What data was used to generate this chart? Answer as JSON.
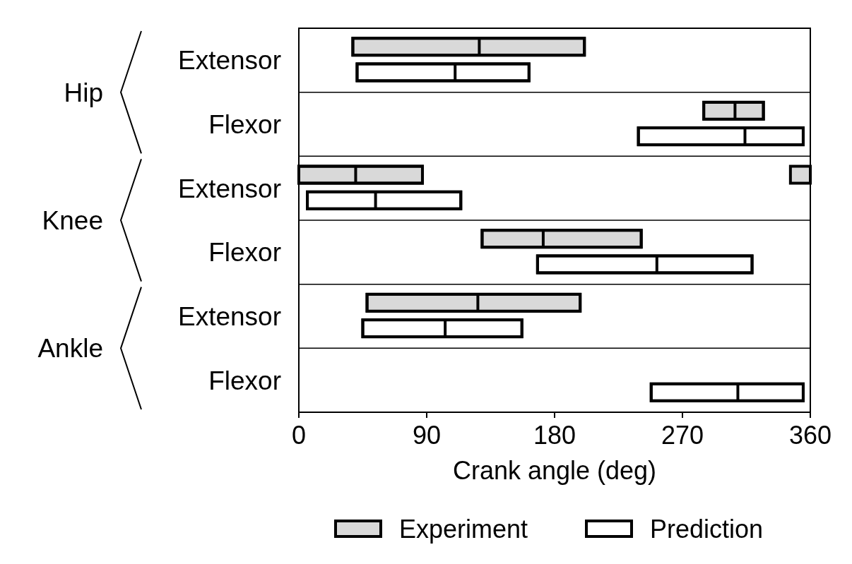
{
  "chart_data": {
    "type": "box",
    "orientation": "horizontal",
    "categories": [
      "Extensor",
      "Flexor",
      "Extensor",
      "Flexor",
      "Extensor",
      "Flexor"
    ],
    "annotations": [
      "Hip",
      "Knee",
      "Ankle"
    ],
    "xlabel": "Crank angle (deg)",
    "xlim": [
      0,
      360
    ],
    "xticks": [
      0,
      90,
      180,
      270,
      360
    ],
    "grid": "y",
    "legend": "bottom",
    "series": [
      {
        "name": "Experiment",
        "color": "#d9d9d9",
        "boxes": [
          {
            "low": 38,
            "q1": 38,
            "median": 127,
            "q3": 201,
            "high": 201
          },
          {
            "low": 285,
            "q1": 285,
            "median": 307,
            "q3": 327,
            "high": 327
          },
          {
            "low": 0,
            "q1": 0,
            "median": 40,
            "q3": 87,
            "high": 87
          },
          {
            "low": 129,
            "q1": 129,
            "median": 172,
            "q3": 241,
            "high": 241
          },
          {
            "low": 48,
            "q1": 48,
            "median": 126,
            "q3": 198,
            "high": 198
          },
          null
        ]
      },
      {
        "name": "Prediction",
        "color": "#ffffff",
        "boxes": [
          {
            "low": 41,
            "q1": 41,
            "median": 110,
            "q3": 162,
            "high": 162
          },
          {
            "low": 239,
            "q1": 239,
            "median": 314,
            "q3": 355,
            "high": 355
          },
          {
            "low": 6,
            "q1": 6,
            "median": 54,
            "q3": 114,
            "high": 114
          },
          {
            "low": 168,
            "q1": 168,
            "median": 252,
            "q3": 319,
            "high": 319
          },
          {
            "low": 45,
            "q1": 45,
            "median": 103,
            "q3": 157,
            "high": 157
          },
          {
            "low": 248,
            "q1": 248,
            "median": 309,
            "q3": 355,
            "high": 355
          }
        ]
      },
      {
        "type": "bar",
        "color": "#d9d9d9",
        "base": [
          null,
          null,
          346,
          null,
          null,
          null
        ],
        "values": [
          null,
          null,
          14,
          null,
          null,
          null
        ]
      }
    ]
  }
}
